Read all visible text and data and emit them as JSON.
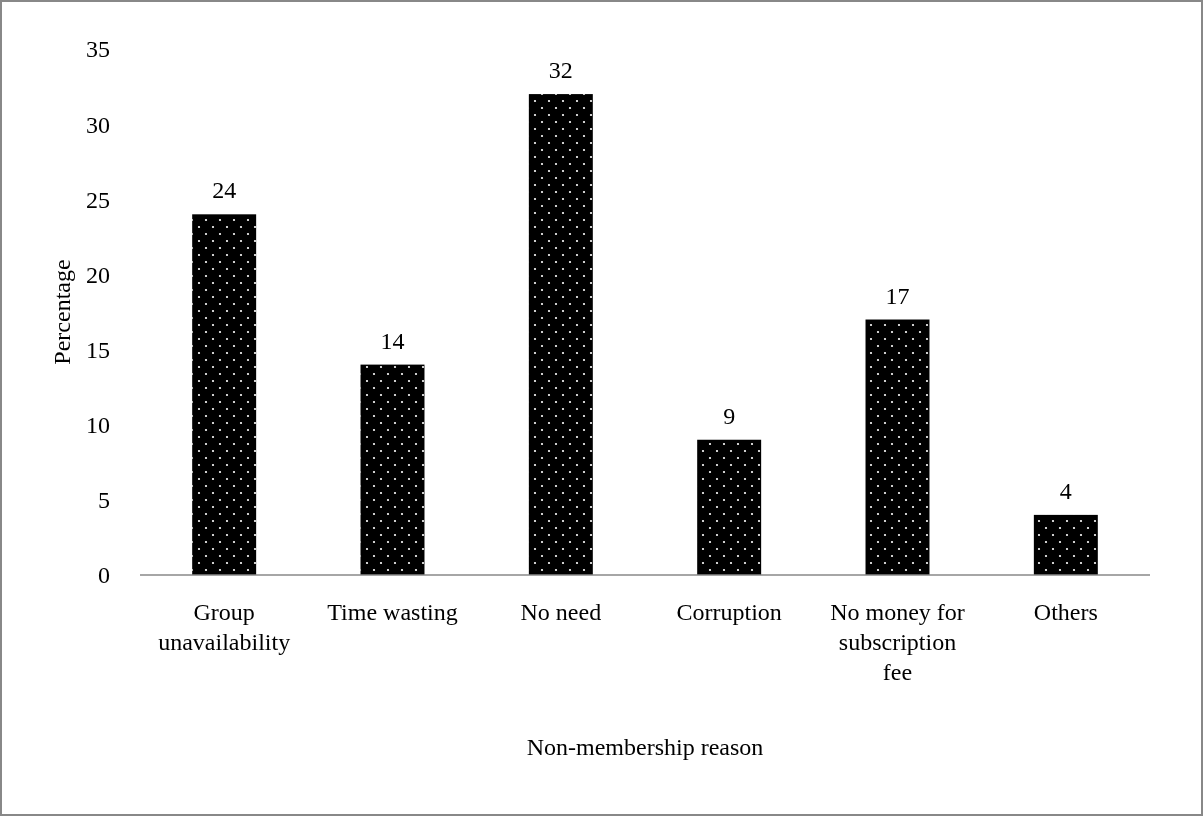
{
  "chart_data": {
    "type": "bar",
    "xlabel": "Non-membership reason",
    "ylabel": "Percentage",
    "categories": [
      "Group unavailability",
      "Time wasting",
      "No need",
      "Corruption",
      "No money for subscription fee",
      "Others"
    ],
    "values": [
      24,
      14,
      32,
      9,
      17,
      4
    ],
    "color": "#000000",
    "ylim": [
      0,
      35
    ],
    "yticks": [
      0,
      5,
      10,
      15,
      20,
      25,
      30,
      35
    ],
    "grid": false,
    "data_labels": true
  }
}
